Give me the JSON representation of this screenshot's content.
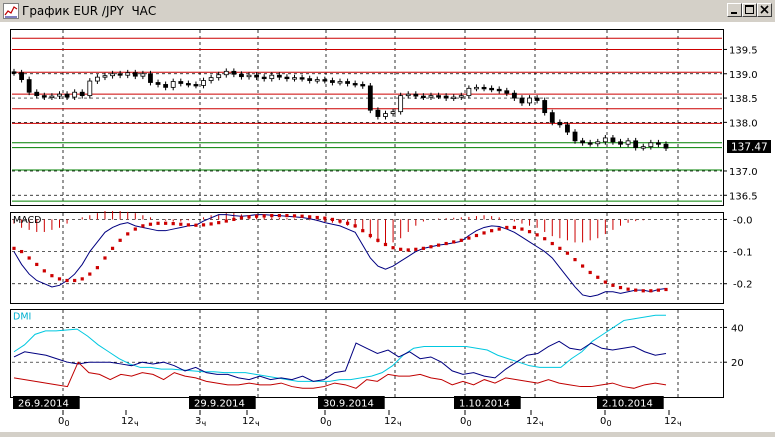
{
  "window": {
    "title": "График EUR /JPY  ЧАС",
    "buttons": [
      "minimize",
      "maximize",
      "close"
    ]
  },
  "chart_data": [
    {
      "type": "candlestick",
      "title": "",
      "y_ticks": [
        "139.5",
        "139.0",
        "138.5",
        "138.0",
        "137.0",
        "136.5"
      ],
      "ylim": [
        136.3,
        139.9
      ],
      "current_price": "137.47",
      "horizontal_levels": [
        {
          "value": 139.73,
          "color": "#cc0000"
        },
        {
          "value": 139.5,
          "color": "#cc0000"
        },
        {
          "value": 139.03,
          "color": "#cc0000"
        },
        {
          "value": 138.58,
          "color": "#cc0000"
        },
        {
          "value": 138.28,
          "color": "#cc0000"
        },
        {
          "value": 137.98,
          "color": "#cc0000"
        },
        {
          "value": 137.58,
          "color": "#008000"
        },
        {
          "value": 137.48,
          "color": "#008000"
        },
        {
          "value": 137.02,
          "color": "#008000"
        },
        {
          "value": 136.38,
          "color": "#008000"
        }
      ],
      "close_path": [
        139.02,
        138.88,
        138.62,
        138.55,
        138.52,
        138.54,
        138.58,
        138.52,
        138.62,
        138.55,
        138.85,
        138.93,
        138.96,
        139.0,
        138.97,
        139.02,
        138.95,
        139.0,
        138.82,
        138.78,
        138.72,
        138.84,
        138.8,
        138.78,
        138.76,
        138.86,
        138.92,
        138.98,
        139.05,
        138.99,
        138.94,
        138.97,
        138.93,
        138.9,
        138.97,
        138.93,
        138.9,
        138.92,
        138.9,
        138.86,
        138.88,
        138.86,
        138.82,
        138.84,
        138.8,
        138.78,
        138.75,
        138.25,
        138.12,
        138.18,
        138.22,
        138.55,
        138.58,
        138.54,
        138.52,
        138.55,
        138.54,
        138.5,
        138.52,
        138.55,
        138.7,
        138.72,
        138.7,
        138.68,
        138.65,
        138.6,
        138.5,
        138.4,
        138.5,
        138.45,
        138.2,
        138.0,
        137.95,
        137.8,
        137.62,
        137.58,
        137.56,
        137.6,
        137.68,
        137.6,
        137.55,
        137.62,
        137.48,
        137.5,
        137.58,
        137.55,
        137.47
      ]
    },
    {
      "type": "line",
      "name": "MACD",
      "y_ticks": [
        "-0.0",
        "-0.1",
        "-0.2"
      ],
      "ylim": [
        -0.26,
        0.02
      ],
      "histogram": [
        -0.01,
        -0.02,
        -0.025,
        -0.03,
        -0.03,
        -0.025,
        -0.02,
        -0.01,
        0.0,
        0.005,
        0.01,
        0.015,
        0.02,
        0.02,
        0.02,
        0.018,
        0.015,
        0.01,
        0.005,
        0.0,
        -0.003,
        -0.005,
        -0.005,
        -0.002,
        0.0,
        0.005,
        0.01,
        0.012,
        0.015,
        0.015,
        0.012,
        0.01,
        0.008,
        0.006,
        0.005,
        0.004,
        0.003,
        0.002,
        0.0,
        -0.002,
        -0.004,
        -0.006,
        -0.008,
        -0.01,
        -0.015,
        -0.02,
        -0.03,
        -0.045,
        -0.055,
        -0.06,
        -0.055,
        -0.045,
        -0.03,
        -0.015,
        -0.005,
        0.0,
        0.002,
        0.003,
        0.004,
        0.005,
        0.006,
        0.008,
        0.01,
        0.008,
        0.005,
        0.0,
        -0.005,
        -0.01,
        -0.015,
        -0.02,
        -0.03,
        -0.04,
        -0.045,
        -0.05,
        -0.055,
        -0.055,
        -0.05,
        -0.045,
        -0.035,
        -0.025,
        -0.015,
        -0.008,
        -0.004,
        -0.002,
        0.0,
        0.0,
        0.0
      ],
      "signal_dots": [
        -0.09,
        -0.1,
        -0.12,
        -0.14,
        -0.16,
        -0.175,
        -0.185,
        -0.19,
        -0.19,
        -0.185,
        -0.17,
        -0.15,
        -0.12,
        -0.09,
        -0.065,
        -0.045,
        -0.03,
        -0.02,
        -0.015,
        -0.012,
        -0.012,
        -0.013,
        -0.015,
        -0.017,
        -0.018,
        -0.017,
        -0.014,
        -0.01,
        -0.005,
        0.0,
        0.005,
        0.008,
        0.01,
        0.011,
        0.012,
        0.012,
        0.012,
        0.011,
        0.01,
        0.008,
        0.006,
        0.004,
        0.0,
        -0.005,
        -0.012,
        -0.02,
        -0.035,
        -0.05,
        -0.065,
        -0.078,
        -0.088,
        -0.093,
        -0.095,
        -0.093,
        -0.09,
        -0.085,
        -0.08,
        -0.075,
        -0.07,
        -0.065,
        -0.058,
        -0.05,
        -0.042,
        -0.035,
        -0.03,
        -0.025,
        -0.025,
        -0.03,
        -0.038,
        -0.048,
        -0.06,
        -0.075,
        -0.09,
        -0.105,
        -0.125,
        -0.145,
        -0.165,
        -0.18,
        -0.195,
        -0.205,
        -0.212,
        -0.217,
        -0.22,
        -0.222,
        -0.222,
        -0.22,
        -0.218
      ],
      "macd_line": [
        -0.1,
        -0.14,
        -0.17,
        -0.19,
        -0.2,
        -0.21,
        -0.205,
        -0.19,
        -0.17,
        -0.14,
        -0.1,
        -0.07,
        -0.04,
        -0.025,
        -0.015,
        -0.01,
        -0.02,
        -0.025,
        -0.03,
        -0.035,
        -0.035,
        -0.03,
        -0.025,
        -0.02,
        -0.018,
        -0.005,
        0.005,
        0.015,
        0.015,
        0.012,
        0.01,
        0.012,
        0.015,
        0.015,
        0.013,
        0.012,
        0.01,
        0.008,
        0.006,
        0.002,
        -0.003,
        -0.01,
        -0.015,
        -0.02,
        -0.03,
        -0.04,
        -0.08,
        -0.12,
        -0.145,
        -0.155,
        -0.145,
        -0.13,
        -0.115,
        -0.1,
        -0.09,
        -0.085,
        -0.08,
        -0.077,
        -0.073,
        -0.068,
        -0.05,
        -0.035,
        -0.025,
        -0.02,
        -0.022,
        -0.03,
        -0.04,
        -0.055,
        -0.07,
        -0.085,
        -0.1,
        -0.12,
        -0.15,
        -0.18,
        -0.21,
        -0.235,
        -0.24,
        -0.235,
        -0.225,
        -0.225,
        -0.23,
        -0.225,
        -0.22,
        -0.22,
        -0.225,
        -0.218,
        -0.215
      ]
    },
    {
      "type": "line",
      "name": "DMI",
      "y_ticks": [
        "40",
        "20"
      ],
      "ylim": [
        0,
        50
      ],
      "series": [
        {
          "name": "ADX",
          "color": "#00c8e0",
          "values": [
            26,
            30,
            36,
            38,
            38,
            38.5,
            39,
            35,
            30,
            26,
            22,
            19,
            17,
            17,
            16,
            16,
            15.5,
            15,
            14.5,
            14.5,
            14,
            14,
            14,
            13,
            12,
            11,
            10,
            9,
            9,
            9,
            9,
            10,
            10,
            11,
            12,
            14,
            18,
            24,
            28,
            29,
            29,
            29,
            29,
            29,
            28,
            27,
            24,
            22,
            20,
            18,
            17,
            17,
            17,
            22,
            26,
            32,
            36,
            40,
            44,
            45,
            46,
            47,
            47
          ]
        },
        {
          "name": "+DI",
          "color": "#000080",
          "values": [
            23,
            26,
            25,
            24,
            22,
            20,
            19,
            20,
            20,
            20,
            19,
            18,
            20,
            19,
            20,
            18,
            15,
            17,
            14,
            13,
            13,
            11,
            10,
            12,
            10,
            11,
            10,
            12,
            9,
            10,
            14,
            15,
            31,
            28,
            25,
            27,
            23,
            26,
            22,
            23,
            20,
            15,
            13,
            14,
            12,
            11,
            16,
            20,
            24,
            25,
            29,
            32,
            28,
            27,
            31,
            28,
            27,
            28,
            29,
            26,
            24,
            25
          ]
        },
        {
          "name": "-DI",
          "color": "#c00000",
          "values": [
            11,
            10,
            9,
            8,
            7,
            6,
            20,
            14,
            13,
            10,
            13,
            12,
            14,
            13,
            10,
            14,
            12,
            11,
            9,
            8,
            7,
            7,
            8,
            7,
            7,
            8,
            6,
            5,
            5,
            6,
            8,
            7,
            5,
            10,
            9,
            13,
            12,
            12,
            13,
            11,
            10,
            7,
            9,
            7,
            10,
            8,
            11,
            10,
            9,
            8,
            10,
            8,
            7,
            6,
            6,
            7,
            8,
            6,
            5,
            7,
            8,
            7
          ]
        }
      ]
    }
  ],
  "date_labels": [
    "26.9.2014",
    "29.9.2014",
    "30.9.2014",
    "1.10.2014",
    "2.10.2014"
  ],
  "time_labels": [
    "0",
    "12",
    "3",
    "12",
    "0",
    "12",
    "0",
    "12",
    "0",
    "12"
  ],
  "time_suffixes": [
    "0",
    "ч",
    "ч",
    "ч",
    "0",
    "ч",
    "0",
    "ч",
    "0",
    "ч"
  ],
  "panel_labels": {
    "macd": "MACD",
    "dmi": "DMI"
  }
}
